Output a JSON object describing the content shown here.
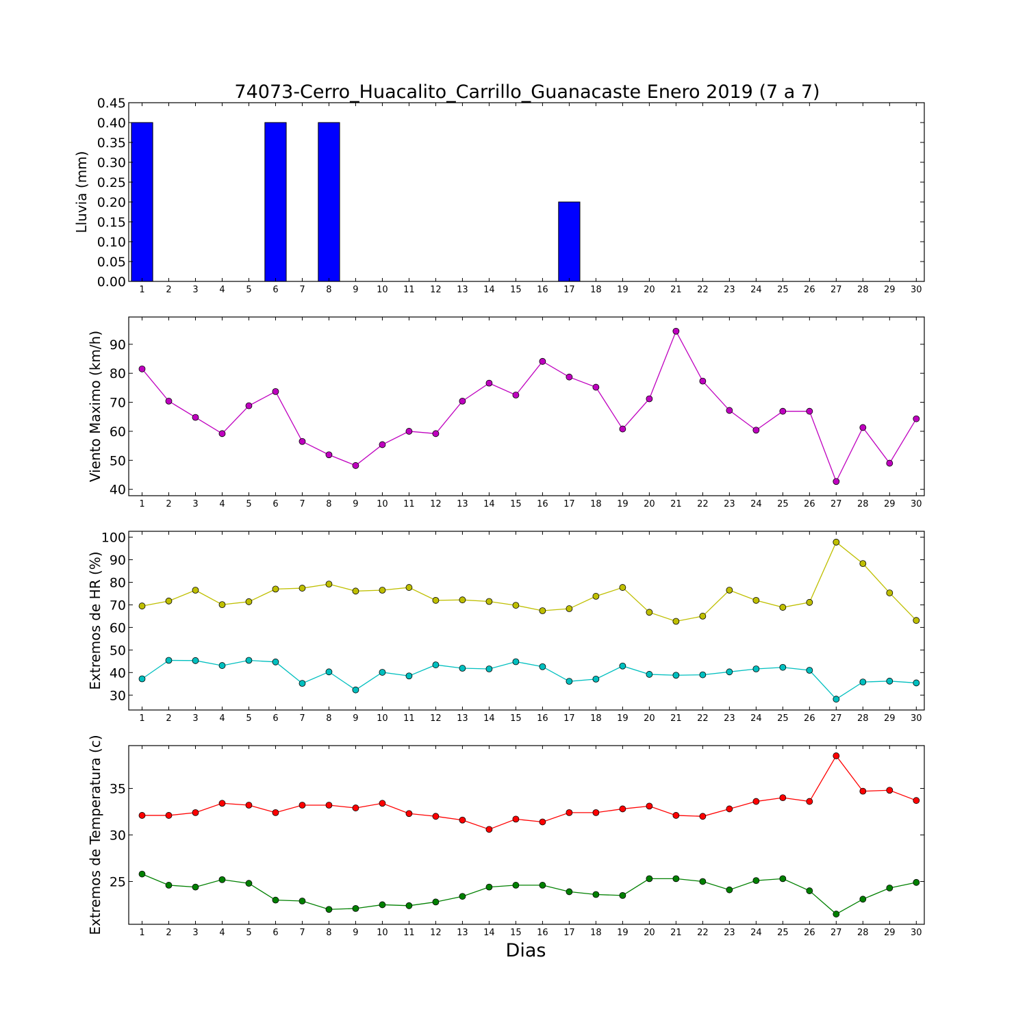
{
  "title": "74073-Cerro_Huacalito_Carrillo_Guanacaste Enero 2019  (7 a 7)",
  "xlabel": "Dias",
  "colors": {
    "rain": "#0000ff",
    "wind": "#bf00bf",
    "hr_max": "#bfbf00",
    "hr_min": "#00bfbf",
    "temp_max": "#ff0000",
    "temp_min": "#008000"
  },
  "chart_data": [
    {
      "type": "bar",
      "ylabel": "Lluvia (mm)",
      "categories": [
        "1",
        "2",
        "3",
        "4",
        "5",
        "6",
        "7",
        "8",
        "9",
        "10",
        "11",
        "12",
        "13",
        "14",
        "15",
        "16",
        "17",
        "18",
        "19",
        "20",
        "21",
        "22",
        "23",
        "24",
        "25",
        "26",
        "27",
        "28",
        "29",
        "30"
      ],
      "series": [
        {
          "values": [
            0.4,
            0,
            0,
            0,
            0,
            0.4,
            0,
            0.4,
            0,
            0,
            0,
            0,
            0,
            0,
            0,
            0,
            0.2,
            0,
            0,
            0,
            0,
            0,
            0,
            0,
            0,
            0,
            0,
            0,
            0,
            0
          ]
        }
      ],
      "ylim": [
        0,
        0.45
      ],
      "yticks": [
        "0.00",
        "0.05",
        "0.10",
        "0.15",
        "0.20",
        "0.25",
        "0.30",
        "0.35",
        "0.40",
        "0.45"
      ],
      "grid": false
    },
    {
      "type": "line",
      "ylabel": "Viento Maximo (km/h)",
      "categories": [
        "1",
        "2",
        "3",
        "4",
        "5",
        "6",
        "7",
        "8",
        "9",
        "10",
        "11",
        "12",
        "13",
        "14",
        "15",
        "16",
        "17",
        "18",
        "19",
        "20",
        "21",
        "22",
        "23",
        "24",
        "25",
        "26",
        "27",
        "28",
        "29",
        "30"
      ],
      "series": [
        {
          "values": [
            81.5,
            70.4,
            64.8,
            59.2,
            68.8,
            73.7,
            56.5,
            51.9,
            48.2,
            55.4,
            60,
            59.2,
            70.4,
            76.6,
            72.5,
            84.1,
            78.7,
            75.2,
            60.8,
            71.2,
            94.5,
            77.3,
            67.2,
            60.4,
            66.9,
            66.9,
            42.7,
            61.3,
            49,
            64.3
          ]
        }
      ],
      "ylim": [
        37.8,
        99.4
      ],
      "yticks": [
        "40",
        "50",
        "60",
        "70",
        "80",
        "90"
      ],
      "grid": false
    },
    {
      "type": "line",
      "ylabel": "Extremos de HR (%)",
      "categories": [
        "1",
        "2",
        "3",
        "4",
        "5",
        "6",
        "7",
        "8",
        "9",
        "10",
        "11",
        "12",
        "13",
        "14",
        "15",
        "16",
        "17",
        "18",
        "19",
        "20",
        "21",
        "22",
        "23",
        "24",
        "25",
        "26",
        "27",
        "28",
        "29",
        "30"
      ],
      "series": [
        {
          "values": [
            69.5,
            71.7,
            76.5,
            70.1,
            71.4,
            77,
            77.4,
            79.2,
            76.1,
            76.5,
            77.7,
            72,
            72.2,
            71.5,
            69.8,
            67.4,
            68.3,
            73.8,
            77.7,
            66.7,
            62.7,
            65,
            76.5,
            72,
            68.9,
            71.1,
            97.8,
            88.3,
            75.3,
            63.1
          ]
        },
        {
          "values": [
            37.2,
            45.4,
            45.3,
            43.1,
            45.4,
            44.7,
            35.2,
            40.3,
            32.3,
            40.1,
            38.5,
            43.4,
            41.9,
            41.6,
            44.8,
            42.6,
            36.1,
            37.1,
            42.9,
            39.2,
            38.8,
            39,
            40.3,
            41.6,
            42.3,
            41,
            28.2,
            35.8,
            36.2,
            35.4
          ]
        }
      ],
      "ylim": [
        23.4,
        102.6
      ],
      "yticks": [
        "30",
        "40",
        "50",
        "60",
        "70",
        "80",
        "90",
        "100"
      ],
      "grid": false
    },
    {
      "type": "line",
      "ylabel": "Extremos de Temperatura (c)",
      "categories": [
        "1",
        "2",
        "3",
        "4",
        "5",
        "6",
        "7",
        "8",
        "9",
        "10",
        "11",
        "12",
        "13",
        "14",
        "15",
        "16",
        "17",
        "18",
        "19",
        "20",
        "21",
        "22",
        "23",
        "24",
        "25",
        "26",
        "27",
        "28",
        "29",
        "30"
      ],
      "series": [
        {
          "values": [
            32.1,
            32.1,
            32.4,
            33.4,
            33.2,
            32.4,
            33.2,
            33.2,
            32.9,
            33.4,
            32.3,
            32,
            31.6,
            30.6,
            31.7,
            31.4,
            32.4,
            32.4,
            32.8,
            33.1,
            32.1,
            32,
            32.8,
            33.6,
            34,
            33.6,
            38.5,
            34.7,
            34.8,
            33.7
          ]
        },
        {
          "values": [
            25.8,
            24.6,
            24.4,
            25.2,
            24.8,
            23,
            22.9,
            22,
            22.1,
            22.5,
            22.4,
            22.8,
            23.4,
            24.4,
            24.6,
            24.6,
            23.9,
            23.6,
            23.5,
            25.3,
            25.3,
            25,
            24.1,
            25.1,
            25.3,
            24,
            21.5,
            23.1,
            24.3,
            24.9
          ]
        }
      ],
      "ylim": [
        20.4,
        39.6
      ],
      "yticks": [
        "25",
        "30",
        "35"
      ],
      "grid": false
    }
  ]
}
